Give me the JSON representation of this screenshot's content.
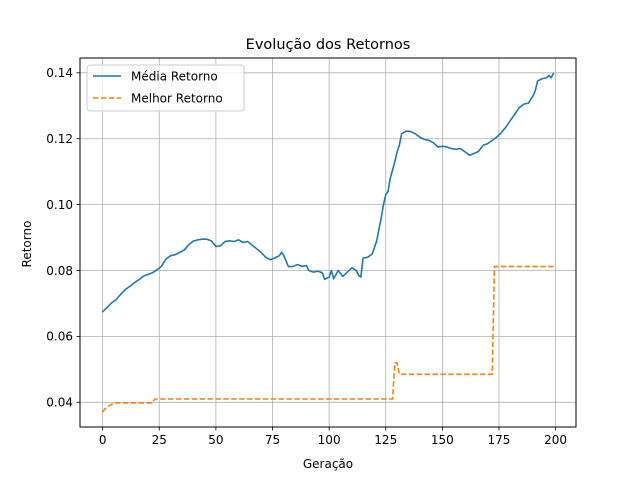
{
  "chart_data": {
    "type": "line",
    "title": "Evolução dos Retornos",
    "xlabel": "Geração",
    "ylabel": "Retorno",
    "xlim": [
      -10,
      209
    ],
    "ylim": [
      0.0325,
      0.1445
    ],
    "xticks": [
      0,
      25,
      50,
      75,
      100,
      125,
      150,
      175,
      200
    ],
    "xtick_labels": [
      "0",
      "25",
      "50",
      "75",
      "100",
      "125",
      "150",
      "175",
      "200"
    ],
    "yticks": [
      0.04,
      0.06,
      0.08,
      0.1,
      0.12,
      0.14
    ],
    "ytick_labels": [
      "0.04",
      "0.06",
      "0.08",
      "0.10",
      "0.12",
      "0.14"
    ],
    "grid": true,
    "legend_position": "upper-left",
    "series": [
      {
        "name": "Média Retorno",
        "color": "#1f77b4",
        "linestyle": "solid",
        "points": [
          [
            0,
            0.0675
          ],
          [
            2,
            0.0688
          ],
          [
            4,
            0.0702
          ],
          [
            6,
            0.0712
          ],
          [
            8,
            0.0728
          ],
          [
            10,
            0.0742
          ],
          [
            12,
            0.0752
          ],
          [
            14,
            0.0763
          ],
          [
            16,
            0.0772
          ],
          [
            18,
            0.0783
          ],
          [
            20,
            0.0788
          ],
          [
            22,
            0.0793
          ],
          [
            24,
            0.0802
          ],
          [
            26,
            0.0813
          ],
          [
            28,
            0.0835
          ],
          [
            30,
            0.0845
          ],
          [
            32,
            0.0848
          ],
          [
            34,
            0.0855
          ],
          [
            36,
            0.0862
          ],
          [
            38,
            0.0878
          ],
          [
            40,
            0.0889
          ],
          [
            42,
            0.0893
          ],
          [
            44,
            0.0895
          ],
          [
            46,
            0.0895
          ],
          [
            48,
            0.089
          ],
          [
            50,
            0.0873
          ],
          [
            52,
            0.0875
          ],
          [
            54,
            0.0888
          ],
          [
            56,
            0.089
          ],
          [
            58,
            0.0888
          ],
          [
            60,
            0.0893
          ],
          [
            62,
            0.0885
          ],
          [
            64,
            0.0888
          ],
          [
            66,
            0.0877
          ],
          [
            68,
            0.0866
          ],
          [
            70,
            0.0855
          ],
          [
            72,
            0.084
          ],
          [
            74,
            0.0833
          ],
          [
            76,
            0.0838
          ],
          [
            78,
            0.0845
          ],
          [
            79,
            0.0855
          ],
          [
            80,
            0.0845
          ],
          [
            82,
            0.0812
          ],
          [
            84,
            0.0812
          ],
          [
            86,
            0.0818
          ],
          [
            88,
            0.0813
          ],
          [
            90,
            0.0815
          ],
          [
            91,
            0.08
          ],
          [
            93,
            0.0795
          ],
          [
            95,
            0.0798
          ],
          [
            97,
            0.0793
          ],
          [
            98,
            0.0773
          ],
          [
            100,
            0.078
          ],
          [
            101,
            0.08
          ],
          [
            102,
            0.0775
          ],
          [
            104,
            0.08
          ],
          [
            106,
            0.0782
          ],
          [
            108,
            0.0795
          ],
          [
            110,
            0.0808
          ],
          [
            112,
            0.08
          ],
          [
            113,
            0.0785
          ],
          [
            114,
            0.078
          ],
          [
            115,
            0.0838
          ],
          [
            117,
            0.084
          ],
          [
            119,
            0.085
          ],
          [
            121,
            0.089
          ],
          [
            123,
            0.096
          ],
          [
            124,
            0.1
          ],
          [
            125,
            0.103
          ],
          [
            126,
            0.104
          ],
          [
            127,
            0.108
          ],
          [
            129,
            0.113
          ],
          [
            130,
            0.116
          ],
          [
            131,
            0.118
          ],
          [
            132,
            0.1215
          ],
          [
            134,
            0.1223
          ],
          [
            136,
            0.1222
          ],
          [
            138,
            0.1215
          ],
          [
            140,
            0.1205
          ],
          [
            142,
            0.1198
          ],
          [
            144,
            0.1195
          ],
          [
            146,
            0.1188
          ],
          [
            148,
            0.1175
          ],
          [
            150,
            0.1177
          ],
          [
            152,
            0.1175
          ],
          [
            154,
            0.117
          ],
          [
            156,
            0.1168
          ],
          [
            158,
            0.117
          ],
          [
            160,
            0.116
          ],
          [
            162,
            0.115
          ],
          [
            164,
            0.1155
          ],
          [
            166,
            0.1162
          ],
          [
            168,
            0.118
          ],
          [
            170,
            0.1185
          ],
          [
            172,
            0.1195
          ],
          [
            174,
            0.1205
          ],
          [
            176,
            0.1218
          ],
          [
            178,
            0.1235
          ],
          [
            180,
            0.1255
          ],
          [
            182,
            0.1275
          ],
          [
            184,
            0.1295
          ],
          [
            186,
            0.1305
          ],
          [
            188,
            0.1308
          ],
          [
            190,
            0.133
          ],
          [
            191,
            0.1345
          ],
          [
            192,
            0.1375
          ],
          [
            194,
            0.1382
          ],
          [
            196,
            0.1385
          ],
          [
            197,
            0.1392
          ],
          [
            198,
            0.1385
          ],
          [
            199,
            0.1398
          ]
        ]
      },
      {
        "name": "Melhor Retorno",
        "color": "#ff7f0e",
        "linestyle": "dashed",
        "points": [
          [
            0,
            0.037
          ],
          [
            1,
            0.038
          ],
          [
            3,
            0.039
          ],
          [
            5,
            0.0398
          ],
          [
            22,
            0.0398
          ],
          [
            23,
            0.041
          ],
          [
            127,
            0.041
          ],
          [
            128,
            0.041
          ],
          [
            129,
            0.052
          ],
          [
            130,
            0.052
          ],
          [
            131,
            0.0485
          ],
          [
            171,
            0.0485
          ],
          [
            172,
            0.0485
          ],
          [
            173,
            0.0812
          ],
          [
            199,
            0.0812
          ]
        ]
      }
    ]
  }
}
